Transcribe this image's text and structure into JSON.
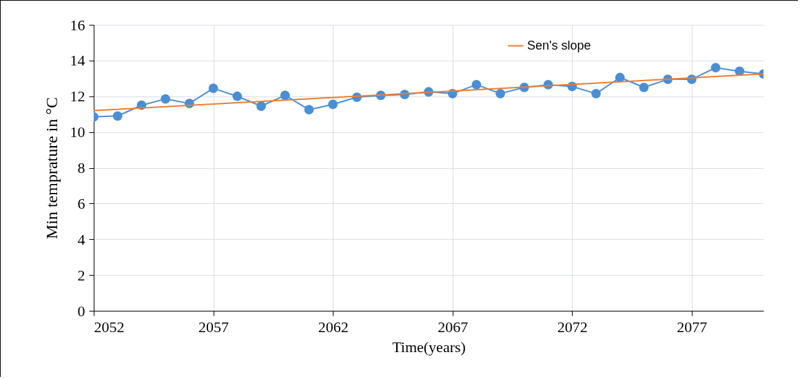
{
  "chart_data": {
    "type": "line",
    "xlabel": "Time(years)",
    "ylabel": "Min temprature in  °C",
    "x": [
      2052,
      2053,
      2054,
      2055,
      2056,
      2057,
      2058,
      2059,
      2060,
      2061,
      2062,
      2063,
      2064,
      2065,
      2066,
      2067,
      2068,
      2069,
      2070,
      2071,
      2072,
      2073,
      2074,
      2075,
      2076,
      2077,
      2078,
      2079,
      2080
    ],
    "xlim": [
      2052,
      2080
    ],
    "xticks": [
      2052,
      2057,
      2062,
      2067,
      2072,
      2077
    ],
    "ylim": [
      0,
      16
    ],
    "yticks": [
      0,
      2,
      4,
      6,
      8,
      10,
      12,
      14,
      16
    ],
    "grid": true,
    "legend": "top right",
    "series": [
      {
        "color": "#4a8fd6",
        "marker": "circle",
        "values": [
          10.85,
          10.9,
          11.5,
          11.85,
          11.6,
          12.45,
          12.0,
          11.45,
          12.05,
          11.25,
          11.55,
          11.95,
          12.05,
          12.1,
          12.25,
          12.15,
          12.65,
          12.15,
          12.5,
          12.65,
          12.55,
          12.15,
          13.05,
          12.5,
          12.95,
          12.95,
          13.6,
          13.4,
          13.25
        ]
      },
      {
        "name": "Sen's slope",
        "type": "line",
        "marker": "none",
        "color": "#ed7d31",
        "x": [
          2052,
          2080
        ],
        "values": [
          11.2,
          13.25
        ]
      }
    ]
  }
}
